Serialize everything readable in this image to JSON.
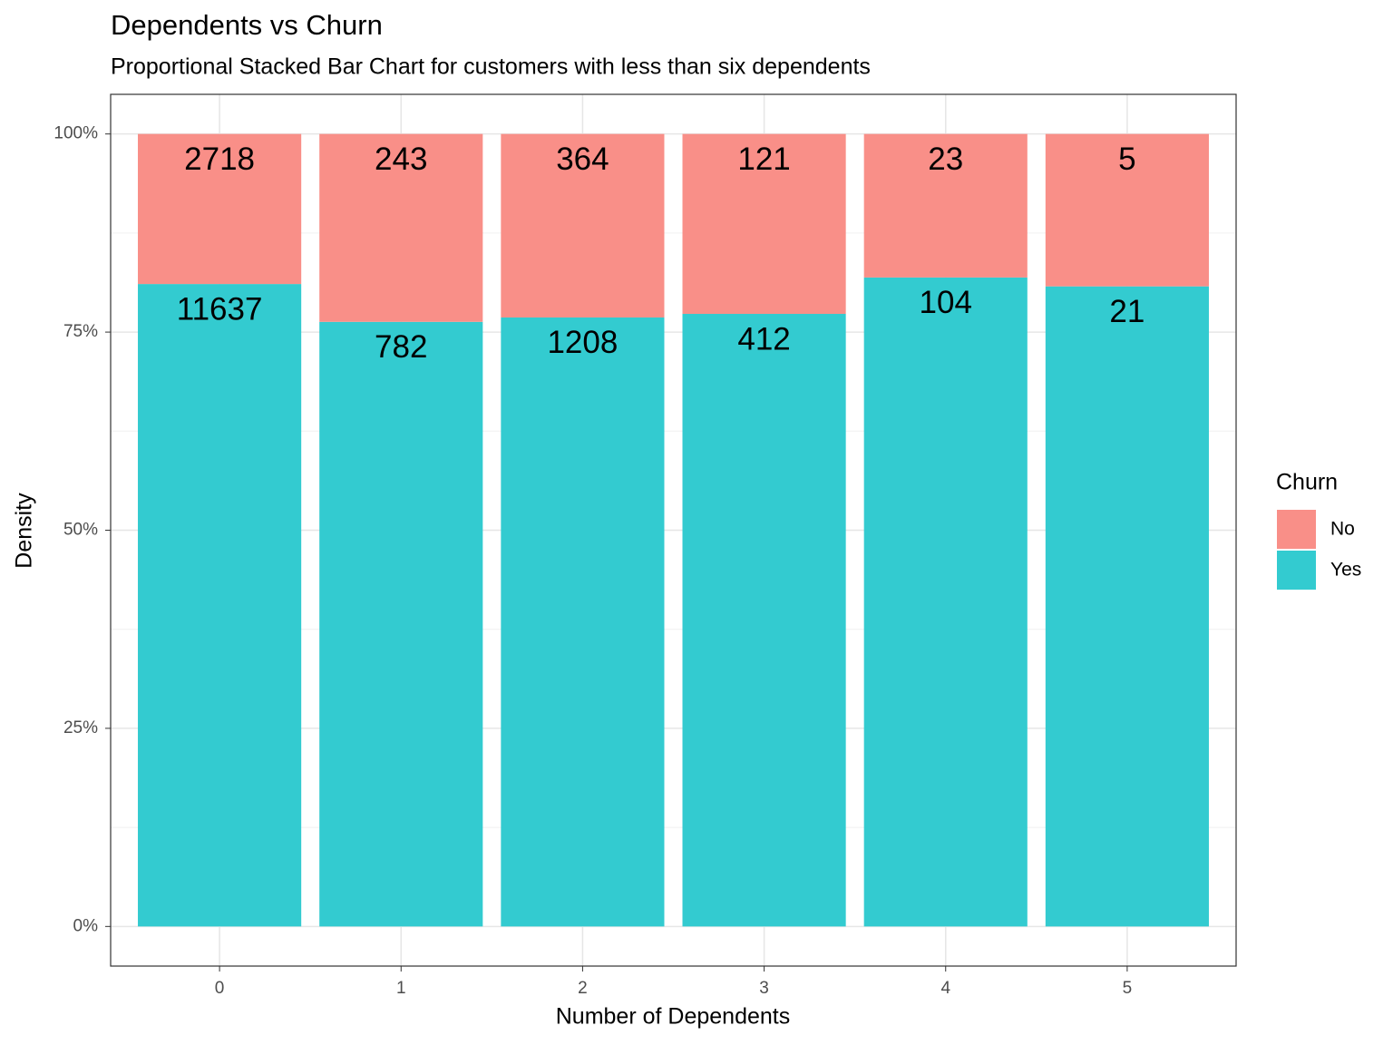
{
  "chart_data": {
    "type": "bar",
    "stacking": "percent",
    "title": "Dependents vs Churn",
    "subtitle": "Proportional Stacked Bar Chart for customers with less than six dependents",
    "x_label": "Number of Dependents",
    "y_label": "Density",
    "legend_title": "Churn",
    "legend_position": "right",
    "categories": [
      "0",
      "1",
      "2",
      "3",
      "4",
      "5"
    ],
    "series": [
      {
        "name": "Yes",
        "color": "#33cbd0",
        "values": [
          11637,
          782,
          1208,
          412,
          104,
          21
        ]
      },
      {
        "name": "No",
        "color": "#f98f88",
        "values": [
          2718,
          243,
          364,
          121,
          23,
          5
        ]
      }
    ],
    "ylim": [
      -5,
      105
    ],
    "yticks": [
      {
        "value": 0,
        "label": "0%"
      },
      {
        "value": 25,
        "label": "25%"
      },
      {
        "value": 50,
        "label": "50%"
      },
      {
        "value": 75,
        "label": "75%"
      },
      {
        "value": 100,
        "label": "100%"
      }
    ],
    "grid": true
  }
}
